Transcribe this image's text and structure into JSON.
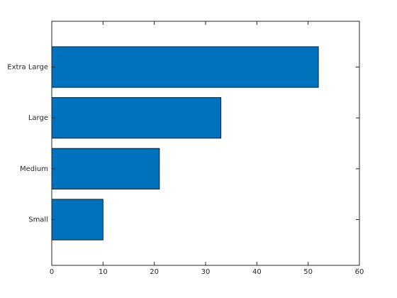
{
  "chart_data": {
    "type": "barh",
    "categories": [
      "Small",
      "Medium",
      "Large",
      "Extra Large"
    ],
    "values": [
      10,
      21,
      33,
      52
    ],
    "color": "#0072bd",
    "xlim": [
      0,
      60
    ],
    "xticks": [
      0,
      10,
      20,
      30,
      40,
      50,
      60
    ]
  }
}
